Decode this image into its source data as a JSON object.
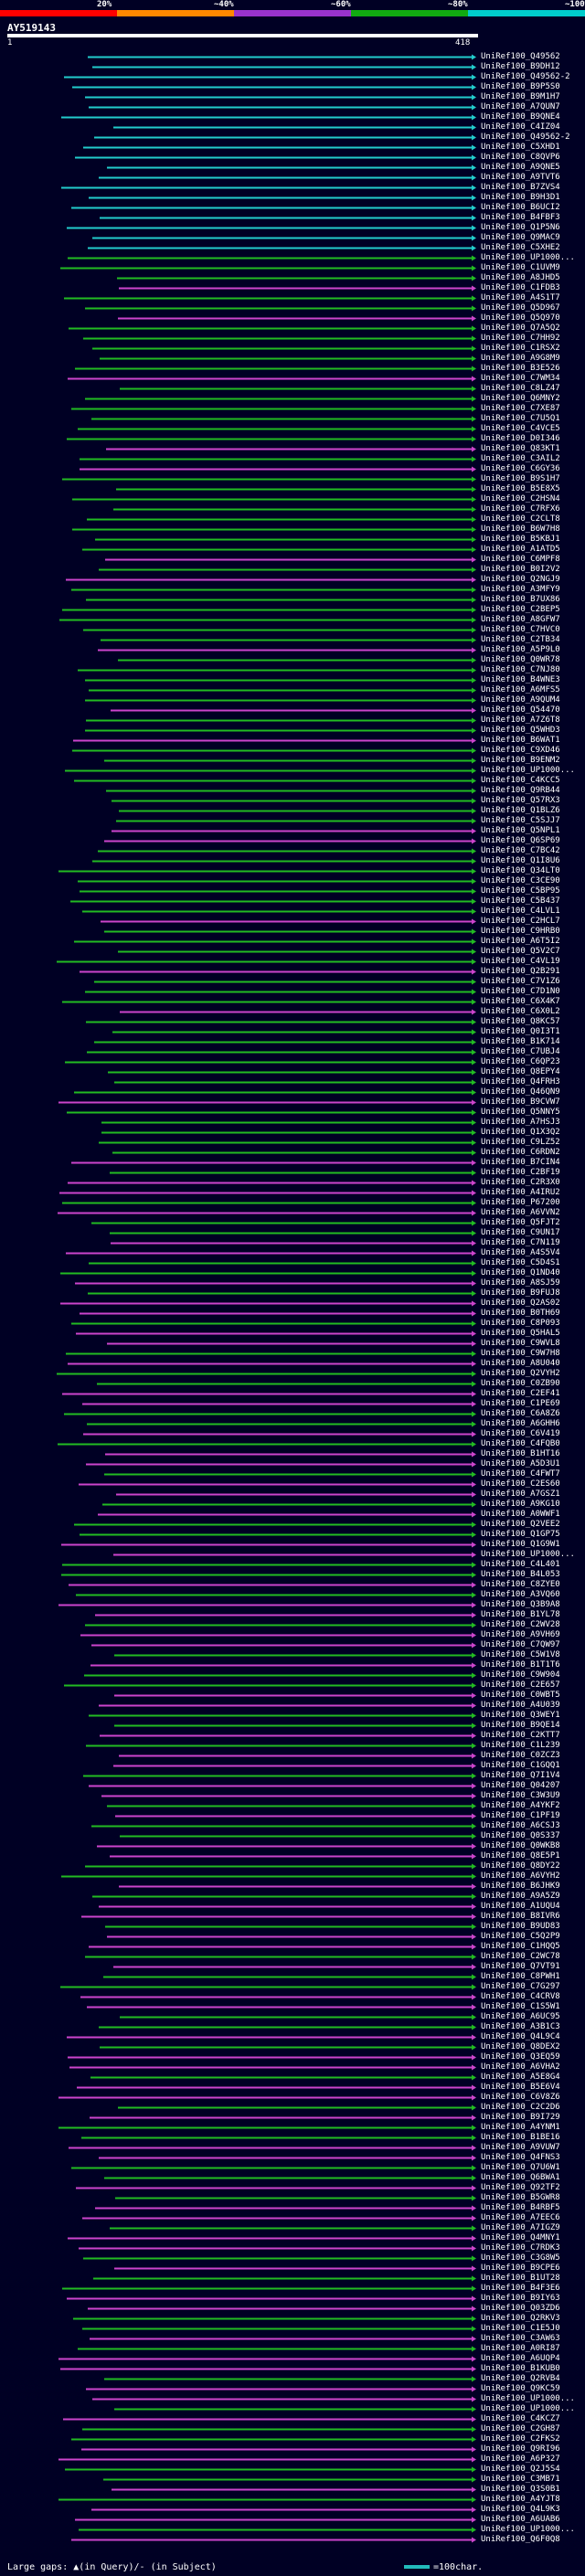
{
  "legend": {
    "labels": [
      "20%",
      "~40%",
      "~60%",
      "~80%",
      "~100%"
    ],
    "colors": [
      "#ff0000",
      "#ff8800",
      "#9933cc",
      "#11aa11",
      "#00cccc"
    ]
  },
  "query": {
    "name": "AY519143",
    "start": "1",
    "end": "418"
  },
  "colors": {
    "cyan": "#22cccc",
    "green": "#22bb22",
    "magenta": "#cc44cc",
    "white": "#ffffff"
  },
  "hits": [
    "UniRef100_Q49562",
    "UniRef100_B9DH12",
    "UniRef100_Q49562-2",
    "UniRef100_B9P5S0",
    "UniRef100_B9M1H7",
    "UniRef100_A7QUN7",
    "UniRef100_B9QNE4",
    "UniRef100_C4IZ04",
    "UniRef100_Q49562-2",
    "UniRef100_C5XHD1",
    "UniRef100_C8QVP6",
    "UniRef100_A9QNE5",
    "UniRef100_A9TVT6",
    "UniRef100_B7ZVS4",
    "UniRef100_B9H3D1",
    "UniRef100_B6UCI2",
    "UniRef100_B4FBF3",
    "UniRef100_Q1P5N6",
    "UniRef100_Q9MAC9",
    "UniRef100_C5XHE2",
    "UniRef100_UP1000...",
    "UniRef100_C1UVM9",
    "UniRef100_A8JHD5",
    "UniRef100_C1FDB3",
    "UniRef100_A4S1T7",
    "UniRef100_Q5D967",
    "UniRef100_Q5Q970",
    "UniRef100_Q7A5Q2",
    "UniRef100_C7HH92",
    "UniRef100_C1RSX2",
    "UniRef100_A9G8M9",
    "UniRef100_B3E526",
    "UniRef100_C7WM34",
    "UniRef100_C8LZ47",
    "UniRef100_Q6MNY2",
    "UniRef100_C7XE87",
    "UniRef100_C7U5Q1",
    "UniRef100_C4VCE5",
    "UniRef100_D0I346",
    "UniRef100_Q83KT1",
    "UniRef100_C3AIL2",
    "UniRef100_C6GY36",
    "UniRef100_B9S1H7",
    "UniRef100_B5E8X5",
    "UniRef100_C2HSN4",
    "UniRef100_C7RFX6",
    "UniRef100_C2CLT8",
    "UniRef100_B6W7H8",
    "UniRef100_B5KBJ1",
    "UniRef100_A1ATD5",
    "UniRef100_C6MPF8",
    "UniRef100_B0I2V2",
    "UniRef100_Q2NGJ9",
    "UniRef100_A3MFY9",
    "UniRef100_B7UX86",
    "UniRef100_C2BEP5",
    "UniRef100_A8GFW7",
    "UniRef100_C7HVC0",
    "UniRef100_C2TB34",
    "UniRef100_A5P9L0",
    "UniRef100_Q0WR78",
    "UniRef100_C7NJ80",
    "UniRef100_B4WNE3",
    "UniRef100_A6MFS5",
    "UniRef100_A9QUM4",
    "UniRef100_Q54470",
    "UniRef100_A7Z6T8",
    "UniRef100_Q5WHD3",
    "UniRef100_B6WAT1",
    "UniRef100_C9XD46",
    "UniRef100_B9ENM2",
    "UniRef100_UP1000...",
    "UniRef100_C4KCC5",
    "UniRef100_Q9RB44",
    "UniRef100_Q57RX3",
    "UniRef100_Q1BLZ6",
    "UniRef100_C5SJJ7",
    "UniRef100_Q5NPL1",
    "UniRef100_Q6SP69",
    "UniRef100_C7BC42",
    "UniRef100_Q1I8U6",
    "UniRef100_Q34LT0",
    "UniRef100_C3CE90",
    "UniRef100_C5BP95",
    "UniRef100_C5B437",
    "UniRef100_C4LVL1",
    "UniRef100_C2HCL7",
    "UniRef100_C9HRB0",
    "UniRef100_A6T5I2",
    "UniRef100_Q5V2C7",
    "UniRef100_C4VL19",
    "UniRef100_Q2B291",
    "UniRef100_C7V1Z6",
    "UniRef100_C7D1N0",
    "UniRef100_C6X4K7",
    "UniRef100_C6X0L2",
    "UniRef100_Q8KC57",
    "UniRef100_Q0I3T1",
    "UniRef100_B1K714",
    "UniRef100_C7UBJ4",
    "UniRef100_C6QP23",
    "UniRef100_Q8EPY4",
    "UniRef100_Q4FRH3",
    "UniRef100_Q46QN9",
    "UniRef100_B9CVW7",
    "UniRef100_Q5NNY5",
    "UniRef100_A7HSJ3",
    "UniRef100_Q1X3Q2",
    "UniRef100_C9LZ52",
    "UniRef100_C6RDN2",
    "UniRef100_B7CIN4",
    "UniRef100_C2BF19",
    "UniRef100_C2R3X0",
    "UniRef100_A4IRU2",
    "UniRef100_P67200",
    "UniRef100_A6VVN2",
    "UniRef100_Q5FJT2",
    "UniRef100_C9UN17",
    "UniRef100_C7N119",
    "UniRef100_A4S5V4",
    "UniRef100_C5D4S1",
    "UniRef100_Q1ND40",
    "UniRef100_A8SJ59",
    "UniRef100_B9FUJ8",
    "UniRef100_Q2AS02",
    "UniRef100_B0TH69",
    "UniRef100_C8P093",
    "UniRef100_Q5HAL5",
    "UniRef100_C9WVL8",
    "UniRef100_C9W7H8",
    "UniRef100_A8U040",
    "UniRef100_Q2VYH2",
    "UniRef100_C0ZB90",
    "UniRef100_C2EF41",
    "UniRef100_C1PE69",
    "UniRef100_C6A8Z6",
    "UniRef100_A6GHH6",
    "UniRef100_C6V419",
    "UniRef100_C4FQB0",
    "UniRef100_B1HT16",
    "UniRef100_A5D3U1",
    "UniRef100_C4FWT7",
    "UniRef100_C2ES60",
    "UniRef100_A7GSZ1",
    "UniRef100_A9KG10",
    "UniRef100_A0WWF1",
    "UniRef100_Q2VEE2",
    "UniRef100_Q1GP75",
    "UniRef100_Q1G9W1",
    "UniRef100_UP1000...",
    "UniRef100_C4L401",
    "UniRef100_B4L053",
    "UniRef100_C8ZYE0",
    "UniRef100_A3VQ60",
    "UniRef100_Q3B9A8",
    "UniRef100_B1YL78",
    "UniRef100_C2WV28",
    "UniRef100_A9VH69",
    "UniRef100_C7QW97",
    "UniRef100_C5W1V8",
    "UniRef100_B1T1T6",
    "UniRef100_C9W904",
    "UniRef100_C2E657",
    "UniRef100_C0WBT5",
    "UniRef100_A4U039",
    "UniRef100_Q3WEY1",
    "UniRef100_B9QE14",
    "UniRef100_C2KTT7",
    "UniRef100_C1L239",
    "UniRef100_C0ZCZ3",
    "UniRef100_C1GQQ1",
    "UniRef100_Q7I1V4",
    "UniRef100_Q04207",
    "UniRef100_C3W3U9",
    "UniRef100_A4YKF2",
    "UniRef100_C1PF19",
    "UniRef100_A6CSJ3",
    "UniRef100_Q0S337",
    "UniRef100_Q0WKB8",
    "UniRef100_Q8E5P1",
    "UniRef100_Q8DY22",
    "UniRef100_A6VYH2",
    "UniRef100_B6JHK9",
    "UniRef100_A9A5Z9",
    "UniRef100_A1UQU4",
    "UniRef100_B8IVR6",
    "UniRef100_B9UD83",
    "UniRef100_C5Q2P9",
    "UniRef100_C1HQQ5",
    "UniRef100_C2WC78",
    "UniRef100_Q7VT91",
    "UniRef100_C8PWH1",
    "UniRef100_C7G297",
    "UniRef100_C4CRV8",
    "UniRef100_C1S5W1",
    "UniRef100_A6UC95",
    "UniRef100_A3B1C3",
    "UniRef100_Q4L9C4",
    "UniRef100_Q8DEX2",
    "UniRef100_Q3EQ59",
    "UniRef100_A6VHA2",
    "UniRef100_A5E8G4",
    "UniRef100_B5E6V4",
    "UniRef100_C6V8Z6",
    "UniRef100_C2C2D6",
    "UniRef100_B9I729",
    "UniRef100_A4YNM1",
    "UniRef100_B1BE16",
    "UniRef100_A9VUW7",
    "UniRef100_Q4FNS3",
    "UniRef100_Q7U6W1",
    "UniRef100_Q6BWA1",
    "UniRef100_Q92TF2",
    "UniRef100_B5GWR8",
    "UniRef100_B4RBF5",
    "UniRef100_A7EEC6",
    "UniRef100_A7IGZ9",
    "UniRef100_Q4MNY1",
    "UniRef100_C7RDK3",
    "UniRef100_C3G8W5",
    "UniRef100_B9CPE6",
    "UniRef100_B1UT28",
    "UniRef100_B4F3E6",
    "UniRef100_B9IY63",
    "UniRef100_Q03ZD6",
    "UniRef100_Q2RKV3",
    "UniRef100_C1E5J0",
    "UniRef100_C3AW63",
    "UniRef100_A0RI87",
    "UniRef100_A6UQP4",
    "UniRef100_B1KUB0",
    "UniRef100_Q2RVB4",
    "UniRef100_Q9KC59",
    "UniRef100_UP1000...",
    "UniRef100_UP1000...",
    "UniRef100_C4KCZ7",
    "UniRef100_C2GH87",
    "UniRef100_C2FKS2",
    "UniRef100_Q9RI96",
    "UniRef100_A6P327",
    "UniRef100_Q2J5S4",
    "UniRef100_C3MB71",
    "UniRef100_Q3S0B1",
    "UniRef100_A4YJT8",
    "UniRef100_Q4L9K3",
    "UniRef100_A6UAB6",
    "UniRef100_UP1000...",
    "UniRef100_Q6F0Q8"
  ],
  "footer": {
    "gaps_label": "Large gaps:",
    "gaps_desc": "(in Query)/- (in Subject)",
    "scale_label": "=100char."
  }
}
